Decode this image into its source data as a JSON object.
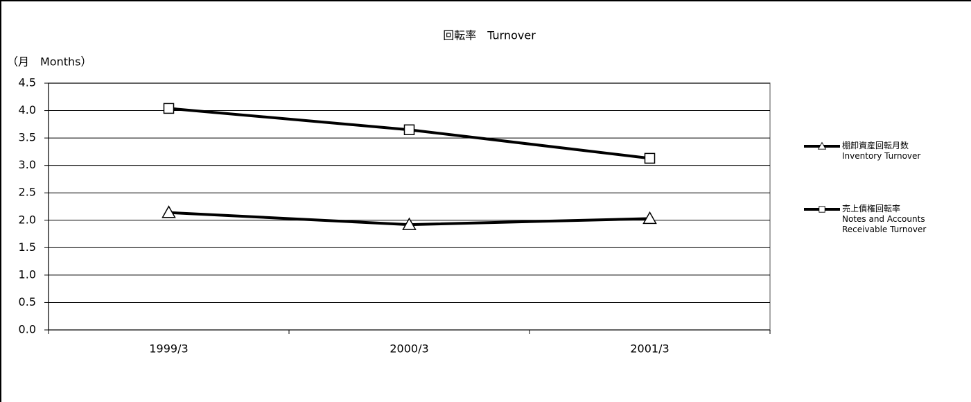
{
  "chart_data": {
    "type": "line",
    "title": "回転率　Turnover",
    "y_label": "（月　Months）",
    "categories": [
      "1999/3",
      "2000/3",
      "2001/3"
    ],
    "series": [
      {
        "name": "棚卸資産回転月数\nInventory Turnover",
        "color": "#000000",
        "marker": "triangle",
        "values": [
          2.14,
          1.92,
          2.03
        ]
      },
      {
        "name": "売上債権回転率\nNotes and Accounts\nReceivable Turnover",
        "color": "#000000",
        "marker": "square",
        "values": [
          4.04,
          3.65,
          3.13
        ]
      }
    ],
    "ylim": [
      0,
      4.5
    ],
    "yticks": [
      {
        "value": 0,
        "label": "0.0"
      },
      0.5,
      {
        "value": 1,
        "label": "1.0"
      },
      1.5,
      {
        "value": 2,
        "label": "2.0"
      },
      2.5,
      {
        "value": 3,
        "label": "3.0"
      },
      3.5,
      {
        "value": 4,
        "label": "4.0"
      },
      4.5
    ],
    "grid": true,
    "legend": "right"
  }
}
